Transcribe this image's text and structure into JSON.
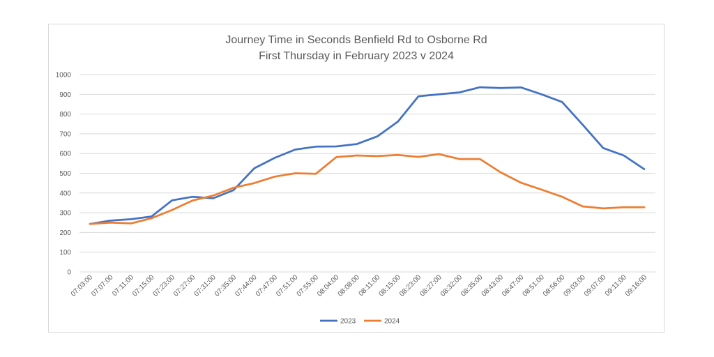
{
  "chart_data": {
    "type": "line",
    "title": "Journey Time in Seconds Benfield Rd to Osborne Rd",
    "subtitle": "First Thursday in February 2023 v 2024",
    "xlabel": "",
    "ylabel": "",
    "ylim": [
      0,
      1000
    ],
    "yticks": [
      "0",
      "100",
      "200",
      "300",
      "400",
      "500",
      "600",
      "700",
      "800",
      "900",
      "1000"
    ],
    "grid": true,
    "legend_position": "bottom",
    "categories": [
      "07:03:00",
      "07:07:00",
      "07:11:00",
      "07:15:00",
      "07:23:00",
      "07:27:00",
      "07:31:00",
      "07:35:00",
      "07:44:00",
      "07:47:00",
      "07:51:00",
      "07:55:00",
      "08:04:00",
      "08:08:00",
      "08:11:00",
      "08:15:00",
      "08:23:00",
      "08:27:00",
      "08:32:00",
      "08:35:00",
      "08:43:00",
      "08:47:00",
      "08:51:00",
      "08:56:00",
      "09:03:00",
      "09:07:00",
      "09:11:00",
      "09:16:00"
    ],
    "series": [
      {
        "name": "2023",
        "color": "#4472c4",
        "values": [
          243,
          260,
          267,
          281,
          363,
          381,
          373,
          415,
          525,
          578,
          620,
          635,
          636,
          648,
          687,
          762,
          890,
          900,
          910,
          936,
          932,
          935,
          900,
          861,
          746,
          628,
          590,
          521
        ]
      },
      {
        "name": "2024",
        "color": "#ed7d31",
        "values": [
          243,
          250,
          246,
          272,
          314,
          362,
          387,
          427,
          450,
          483,
          500,
          497,
          582,
          590,
          587,
          593,
          583,
          597,
          572,
          572,
          505,
          452,
          417,
          381,
          332,
          322,
          328,
          328
        ]
      }
    ]
  }
}
